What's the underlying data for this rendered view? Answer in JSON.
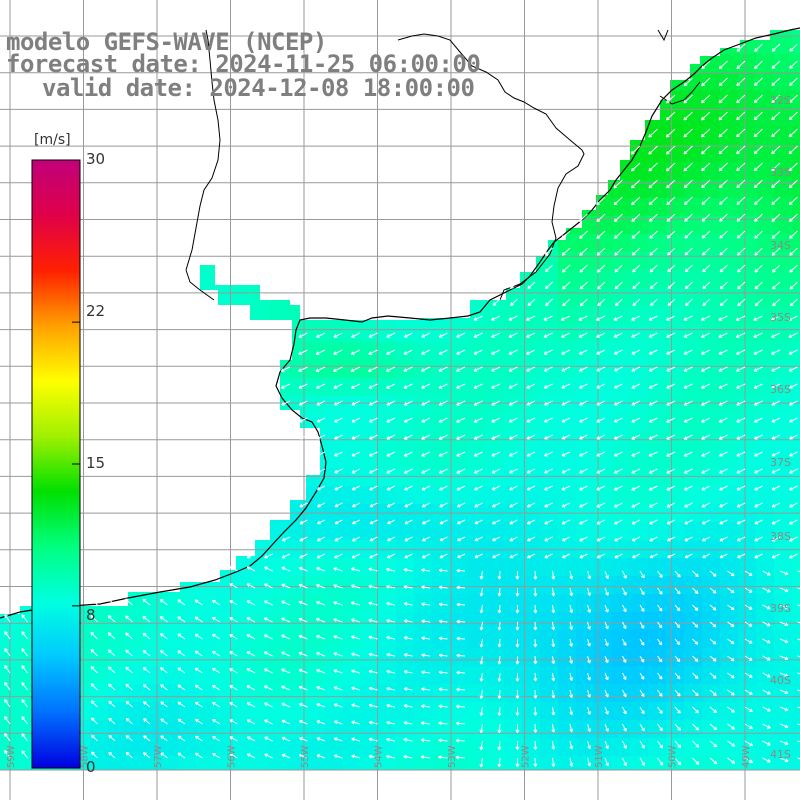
{
  "title": {
    "line1": "modelo GEFS-WAVE (NCEP)",
    "line2": "forecast date: 2024-11-25 06:00:00",
    "line3": "valid date: 2024-12-08 18:00:00"
  },
  "colorbar": {
    "unit": "[m/s]",
    "ticks": [
      {
        "label": "30",
        "value": 30
      },
      {
        "label": "22",
        "value": 22
      },
      {
        "label": "15",
        "value": 15
      },
      {
        "label": "8",
        "value": 8
      },
      {
        "label": "0",
        "value": 0
      }
    ],
    "colors": [
      "#0000e0",
      "#0070ff",
      "#00c8ff",
      "#00ffe0",
      "#00ff80",
      "#00e000",
      "#a0f000",
      "#ffff00",
      "#ffa000",
      "#ff2000",
      "#e0004a",
      "#c0007a"
    ]
  },
  "map": {
    "land_color": "#ffffff",
    "grid_color": "#999999",
    "arrow_color": "#ffffff",
    "lat_labels": [
      "32S",
      "33S",
      "34S",
      "35S",
      "36S",
      "37S",
      "38S",
      "39S",
      "40S",
      "41S"
    ],
    "lon_labels": [
      "59W",
      "58W",
      "57W",
      "56W",
      "55W",
      "54W",
      "53W",
      "52W",
      "51W",
      "50W",
      "49W"
    ]
  }
}
